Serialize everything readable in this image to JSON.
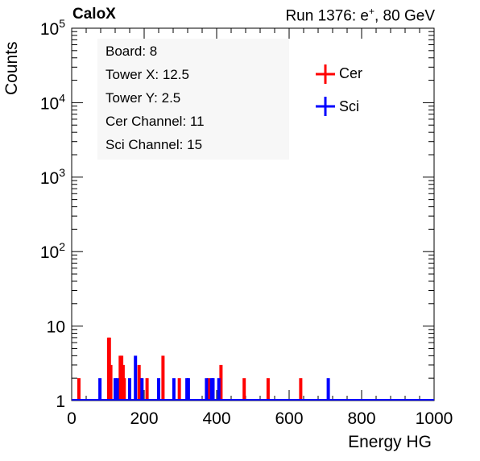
{
  "header": {
    "brand": "CaloX",
    "run_label": "Run 1376: e",
    "run_sup": "+",
    "run_energy": ", 80 GeV"
  },
  "info": {
    "lines": [
      "Board: 8",
      "Tower X: 12.5",
      "Tower Y: 2.5",
      "Cer Channel: 11",
      "Sci Channel: 15"
    ]
  },
  "chart_data": {
    "type": "bar",
    "xlabel": "Energy HG",
    "ylabel": "Counts",
    "xlim": [
      0,
      1000
    ],
    "ylim": [
      1,
      100000
    ],
    "yscale": "log",
    "xticks": [
      "0",
      "200",
      "400",
      "600",
      "800",
      "1000"
    ],
    "yticks": [
      "1",
      "10",
      "10^2",
      "10^3",
      "10^4",
      "10^5"
    ],
    "legend_position": "top-right",
    "series": [
      {
        "name": "Cer",
        "color": "#ff0000",
        "points": [
          [
            20,
            2
          ],
          [
            102,
            7
          ],
          [
            104,
            7
          ],
          [
            108,
            3
          ],
          [
            134,
            4
          ],
          [
            138,
            4
          ],
          [
            142,
            3
          ],
          [
            145,
            2
          ],
          [
            186,
            3
          ],
          [
            190,
            2
          ],
          [
            208,
            2
          ],
          [
            252,
            4
          ],
          [
            297,
            2
          ],
          [
            378,
            2
          ],
          [
            412,
            3
          ],
          [
            476,
            2
          ],
          [
            542,
            2
          ],
          [
            632,
            2
          ]
        ]
      },
      {
        "name": "Sci",
        "color": "#0000ff",
        "points": [
          [
            78,
            2
          ],
          [
            120,
            2
          ],
          [
            126,
            2
          ],
          [
            160,
            2
          ],
          [
            176,
            4
          ],
          [
            194,
            2
          ],
          [
            240,
            2
          ],
          [
            282,
            2
          ],
          [
            318,
            2
          ],
          [
            322,
            2
          ],
          [
            372,
            2
          ],
          [
            386,
            2
          ],
          [
            390,
            2
          ],
          [
            406,
            2
          ],
          [
            708,
            2
          ]
        ]
      }
    ]
  }
}
